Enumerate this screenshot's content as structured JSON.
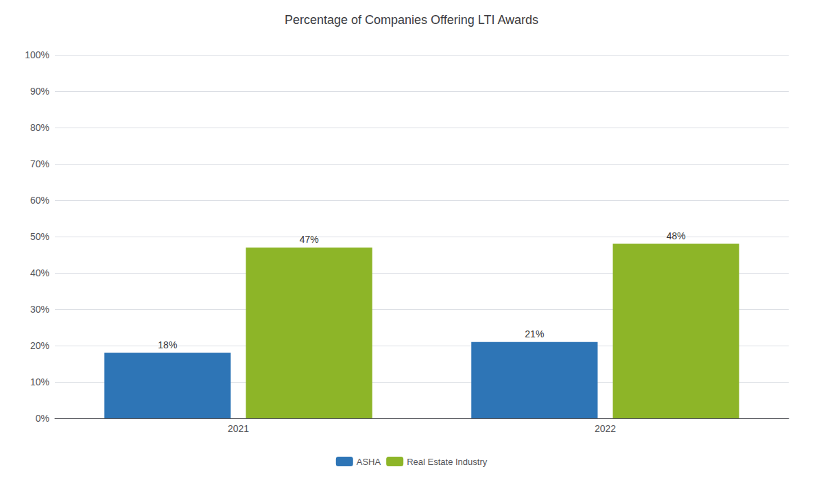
{
  "chart_data": {
    "type": "bar",
    "title": "Percentage of Companies Offering LTI Awards",
    "categories": [
      "2021",
      "2022"
    ],
    "series": [
      {
        "name": "ASHA",
        "color": "#2E75B6",
        "values": [
          18,
          21
        ],
        "value_labels": [
          "18%",
          "21%"
        ]
      },
      {
        "name": "Real Estate Industry",
        "color": "#8DB528",
        "values": [
          47,
          48
        ],
        "value_labels": [
          "47%",
          "48%"
        ]
      }
    ],
    "ylim": [
      0,
      100
    ],
    "yticks": [
      {
        "value": 0,
        "label": "0%"
      },
      {
        "value": 10,
        "label": "10%"
      },
      {
        "value": 20,
        "label": "20%"
      },
      {
        "value": 30,
        "label": "30%"
      },
      {
        "value": 40,
        "label": "40%"
      },
      {
        "value": 50,
        "label": "50%"
      },
      {
        "value": 60,
        "label": "60%"
      },
      {
        "value": 70,
        "label": "70%"
      },
      {
        "value": 80,
        "label": "80%"
      },
      {
        "value": 90,
        "label": "90%"
      },
      {
        "value": 100,
        "label": "100%"
      }
    ],
    "grid": true,
    "legend": "bottom",
    "data_labels": true
  }
}
